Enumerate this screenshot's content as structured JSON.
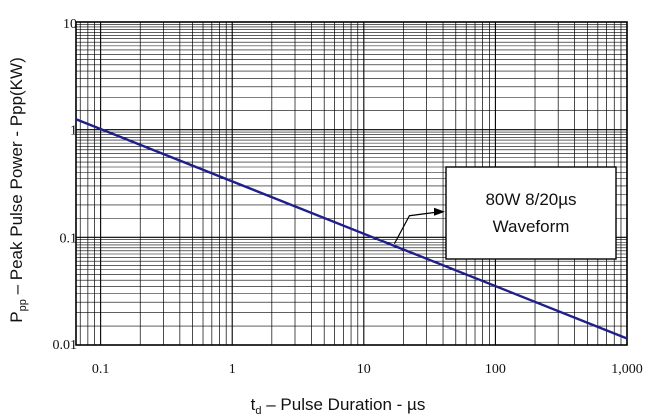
{
  "chart_data": {
    "type": "line",
    "x_scale": "log",
    "y_scale": "log",
    "xlim": [
      0.065,
      1000
    ],
    "ylim": [
      0.01,
      10
    ],
    "grid": true,
    "x_ticks": [
      0.1,
      1,
      10,
      100,
      1000
    ],
    "x_tick_labels": [
      "0.1",
      "1",
      "10",
      "100",
      "1,000"
    ],
    "y_ticks": [
      10,
      1,
      0.1,
      0.01
    ],
    "y_tick_labels": [
      "10",
      "1",
      "0.1",
      "0.01"
    ],
    "xlabel": {
      "main": "t",
      "sub": "d",
      "rest": " –  Pulse Duration  - µs"
    },
    "ylabel": {
      "main": "P",
      "sub": "pp",
      "rest": "  –  Peak Pulse Power - Ppp(KW)"
    },
    "series": [
      {
        "x": [
          0.065,
          1000
        ],
        "y": [
          1.25,
          0.0115
        ],
        "color": "#1f1f8c"
      }
    ],
    "annotation": {
      "lines": [
        "80W 8/20µs",
        "Waveform"
      ],
      "arrow_to": {
        "x": 18,
        "y": 0.095
      }
    }
  }
}
